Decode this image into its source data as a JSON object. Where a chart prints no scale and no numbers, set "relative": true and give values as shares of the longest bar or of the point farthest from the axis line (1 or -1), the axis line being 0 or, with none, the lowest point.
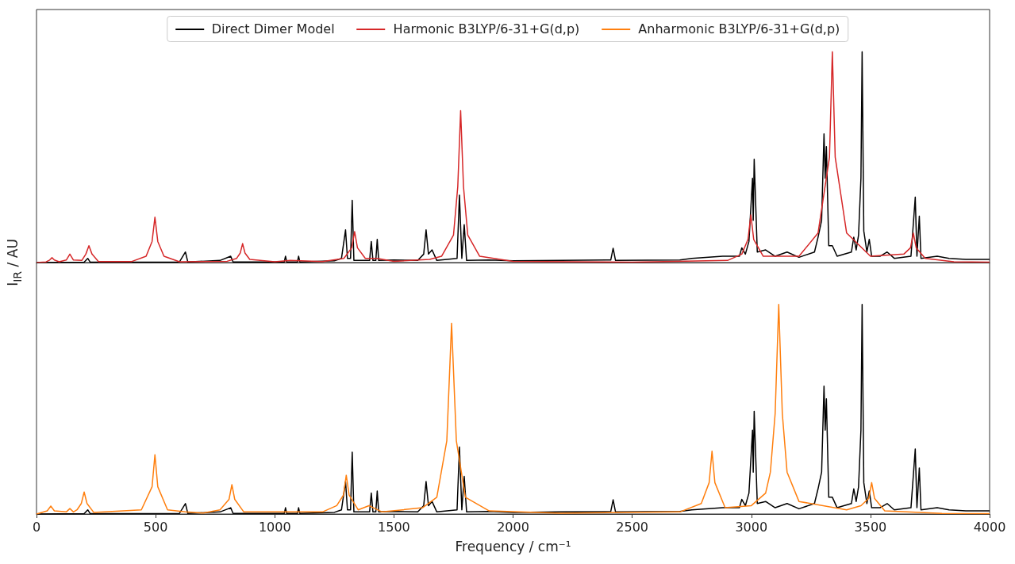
{
  "chart_data": [
    {
      "type": "line",
      "relative": true,
      "ylabel": "I$_{IR}$ / AU",
      "legend": "top",
      "tick_labels": false,
      "xlim": [
        0,
        4000
      ],
      "xticks": [
        0,
        500,
        1000,
        1500,
        2000,
        2500,
        3000,
        3500,
        4000
      ],
      "line_style": "solid",
      "marker": "none",
      "series": [
        {
          "name": "Direct Dimer Model",
          "color": "#000000",
          "x": [
            0,
            200,
            215,
            225,
            600,
            625,
            635,
            770,
            815,
            825,
            1040,
            1045,
            1050,
            1095,
            1100,
            1105,
            1250,
            1280,
            1297,
            1305,
            1318,
            1325,
            1332,
            1398,
            1405,
            1412,
            1424,
            1430,
            1436,
            1500,
            1600,
            1625,
            1635,
            1645,
            1660,
            1680,
            1765,
            1775,
            1785,
            1795,
            1805,
            1900,
            2000,
            2200,
            2410,
            2420,
            2430,
            2700,
            2750,
            2880,
            2950,
            2960,
            2975,
            2990,
            3005,
            3008,
            3012,
            3025,
            3060,
            3100,
            3150,
            3200,
            3265,
            3280,
            3295,
            3305,
            3310,
            3315,
            3325,
            3340,
            3360,
            3420,
            3430,
            3440,
            3450,
            3460,
            3465,
            3472,
            3485,
            3495,
            3505,
            3540,
            3570,
            3600,
            3670,
            3688,
            3695,
            3705,
            3712,
            3780,
            3830,
            3900,
            4000
          ],
          "values": [
            0,
            0.002,
            0.02,
            0.002,
            0.003,
            0.05,
            0.003,
            0.01,
            0.03,
            0.003,
            0.003,
            0.03,
            0.003,
            0.003,
            0.03,
            0.003,
            0.008,
            0.02,
            0.155,
            0.02,
            0.02,
            0.295,
            0.01,
            0.01,
            0.1,
            0.01,
            0.01,
            0.11,
            0.01,
            0.012,
            0.01,
            0.04,
            0.155,
            0.04,
            0.06,
            0.01,
            0.02,
            0.32,
            0.02,
            0.18,
            0.01,
            0.012,
            0.008,
            0.01,
            0.012,
            0.068,
            0.01,
            0.012,
            0.02,
            0.03,
            0.03,
            0.07,
            0.04,
            0.1,
            0.4,
            0.2,
            0.49,
            0.05,
            0.06,
            0.03,
            0.05,
            0.025,
            0.05,
            0.12,
            0.2,
            0.61,
            0.4,
            0.55,
            0.08,
            0.08,
            0.03,
            0.05,
            0.12,
            0.06,
            0.13,
            0.4,
            1.0,
            0.15,
            0.05,
            0.11,
            0.03,
            0.03,
            0.05,
            0.02,
            0.03,
            0.31,
            0.03,
            0.22,
            0.02,
            0.03,
            0.02,
            0.015,
            0.015
          ]
        },
        {
          "name": "Harmonic B3LYP/6-31+G(d,p)",
          "color": "#d62728",
          "x": [
            0,
            40,
            55,
            65,
            75,
            95,
            125,
            140,
            155,
            190,
            207,
            220,
            233,
            260,
            400,
            460,
            485,
            497,
            509,
            535,
            600,
            800,
            840,
            855,
            865,
            875,
            895,
            1000,
            1065,
            1200,
            1290,
            1323,
            1335,
            1347,
            1380,
            1430,
            1500,
            1650,
            1700,
            1750,
            1768,
            1780,
            1792,
            1810,
            1860,
            2000,
            2500,
            2900,
            2960,
            2986,
            2998,
            3010,
            3050,
            3200,
            3280,
            3328,
            3340,
            3352,
            3400,
            3500,
            3640,
            3668,
            3680,
            3692,
            3730,
            3850,
            4000
          ],
          "values": [
            0,
            0.003,
            0.012,
            0.023,
            0.012,
            0.004,
            0.012,
            0.04,
            0.012,
            0.01,
            0.04,
            0.08,
            0.04,
            0.005,
            0.005,
            0.03,
            0.1,
            0.215,
            0.1,
            0.03,
            0.004,
            0.006,
            0.02,
            0.045,
            0.09,
            0.045,
            0.015,
            0.004,
            0.01,
            0.005,
            0.02,
            0.07,
            0.147,
            0.07,
            0.02,
            0.02,
            0.006,
            0.015,
            0.03,
            0.13,
            0.36,
            0.72,
            0.36,
            0.13,
            0.03,
            0.006,
            0.002,
            0.01,
            0.04,
            0.11,
            0.226,
            0.11,
            0.03,
            0.03,
            0.14,
            0.5,
            1.0,
            0.5,
            0.14,
            0.03,
            0.04,
            0.07,
            0.14,
            0.07,
            0.02,
            0.004,
            0.002
          ]
        }
      ]
    },
    {
      "type": "line",
      "relative": true,
      "xlabel": "Frequency / cm⁻¹",
      "tick_labels": "x",
      "xlim": [
        0,
        4000
      ],
      "xticks": [
        0,
        500,
        1000,
        1500,
        2000,
        2500,
        3000,
        3500,
        4000
      ],
      "line_style": "solid",
      "marker": "none",
      "series": [
        {
          "color": "#000000",
          "x": [
            0,
            200,
            215,
            225,
            600,
            625,
            635,
            770,
            815,
            825,
            1040,
            1045,
            1050,
            1095,
            1100,
            1105,
            1250,
            1280,
            1297,
            1305,
            1318,
            1325,
            1332,
            1398,
            1405,
            1412,
            1424,
            1430,
            1436,
            1500,
            1600,
            1625,
            1635,
            1645,
            1660,
            1680,
            1765,
            1775,
            1785,
            1795,
            1805,
            1900,
            2000,
            2200,
            2410,
            2420,
            2430,
            2700,
            2750,
            2880,
            2950,
            2960,
            2975,
            2990,
            3005,
            3008,
            3012,
            3025,
            3060,
            3100,
            3150,
            3200,
            3265,
            3280,
            3295,
            3305,
            3310,
            3315,
            3325,
            3340,
            3360,
            3420,
            3430,
            3440,
            3450,
            3460,
            3465,
            3472,
            3485,
            3495,
            3505,
            3540,
            3570,
            3600,
            3670,
            3688,
            3695,
            3705,
            3712,
            3780,
            3830,
            3900,
            4000
          ],
          "values": [
            0,
            0.002,
            0.02,
            0.002,
            0.003,
            0.05,
            0.003,
            0.01,
            0.03,
            0.003,
            0.003,
            0.03,
            0.003,
            0.003,
            0.03,
            0.003,
            0.008,
            0.02,
            0.155,
            0.02,
            0.02,
            0.295,
            0.01,
            0.01,
            0.1,
            0.01,
            0.01,
            0.11,
            0.01,
            0.012,
            0.01,
            0.04,
            0.155,
            0.04,
            0.06,
            0.01,
            0.02,
            0.32,
            0.02,
            0.18,
            0.01,
            0.012,
            0.008,
            0.01,
            0.012,
            0.068,
            0.01,
            0.012,
            0.02,
            0.03,
            0.03,
            0.07,
            0.04,
            0.1,
            0.4,
            0.2,
            0.49,
            0.05,
            0.06,
            0.03,
            0.05,
            0.025,
            0.05,
            0.12,
            0.2,
            0.61,
            0.4,
            0.55,
            0.08,
            0.08,
            0.03,
            0.05,
            0.12,
            0.06,
            0.13,
            0.4,
            1.0,
            0.15,
            0.05,
            0.11,
            0.03,
            0.03,
            0.05,
            0.02,
            0.03,
            0.31,
            0.03,
            0.22,
            0.02,
            0.03,
            0.02,
            0.015,
            0.015
          ]
        },
        {
          "name": "Anharmonic B3LYP/6-31+G(d,p)",
          "color": "#ff7f0e",
          "x": [
            0,
            45,
            60,
            75,
            125,
            140,
            155,
            170,
            188,
            200,
            212,
            240,
            440,
            485,
            497,
            509,
            550,
            625,
            700,
            770,
            808,
            820,
            832,
            870,
            1020,
            1200,
            1260,
            1288,
            1300,
            1312,
            1350,
            1395,
            1450,
            1620,
            1680,
            1722,
            1742,
            1762,
            1800,
            1900,
            2200,
            2700,
            2790,
            2823,
            2835,
            2847,
            2890,
            3000,
            3060,
            3080,
            3100,
            3115,
            3130,
            3150,
            3200,
            3400,
            3460,
            3493,
            3505,
            3517,
            3560,
            3800,
            4000
          ],
          "values": [
            0,
            0.015,
            0.038,
            0.015,
            0.01,
            0.026,
            0.01,
            0.02,
            0.05,
            0.105,
            0.05,
            0.008,
            0.02,
            0.13,
            0.283,
            0.13,
            0.02,
            0.01,
            0.005,
            0.02,
            0.07,
            0.14,
            0.07,
            0.01,
            0.01,
            0.01,
            0.04,
            0.09,
            0.185,
            0.09,
            0.02,
            0.04,
            0.01,
            0.03,
            0.08,
            0.35,
            0.91,
            0.35,
            0.08,
            0.015,
            0.004,
            0.01,
            0.05,
            0.15,
            0.3,
            0.15,
            0.03,
            0.04,
            0.1,
            0.2,
            0.48,
            1.0,
            0.48,
            0.2,
            0.06,
            0.02,
            0.04,
            0.075,
            0.15,
            0.075,
            0.015,
            0.003,
            0.002
          ]
        }
      ]
    }
  ]
}
